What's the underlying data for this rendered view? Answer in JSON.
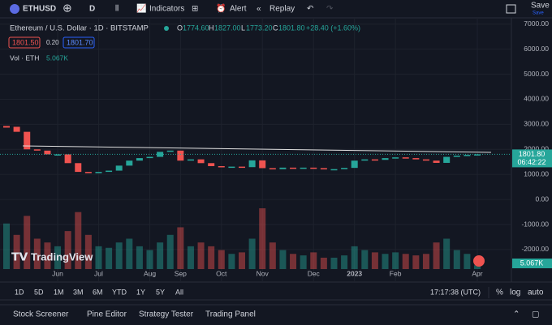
{
  "toolbar": {
    "symbol": "ETHUSD",
    "interval": "D",
    "indicators": "Indicators",
    "alert": "Alert",
    "replay": "Replay",
    "save": "Save",
    "save_sub": "Save"
  },
  "legend": {
    "title": "Ethereum / U.S. Dollar · 1D · BITSTAMP",
    "open_label": "O",
    "open": "1774.60",
    "high_label": "H",
    "high": "1827.00",
    "low_label": "L",
    "low": "1773.20",
    "close_label": "C",
    "close": "1801.80",
    "change": "+28.40 (+1.60%)",
    "bid": "1801.50",
    "spread": "0.20",
    "ask": "1801.70",
    "volume_label": "Vol · ETH",
    "volume": "5.067K"
  },
  "chart_data": {
    "type": "candlestick",
    "up_color": "#26a69a",
    "down_color": "#ef5350",
    "grid": true,
    "categories": [
      null,
      null,
      null,
      null,
      null,
      "Jun",
      null,
      null,
      null,
      "Jul",
      null,
      null,
      null,
      null,
      "Aug",
      null,
      null,
      "Sep",
      null,
      null,
      null,
      "Oct",
      null,
      null,
      null,
      "Nov",
      null,
      null,
      null,
      null,
      "Dec",
      null,
      null,
      null,
      "2023",
      null,
      null,
      null,
      "Feb",
      null,
      null,
      null,
      null,
      null,
      null,
      null,
      "Apr"
    ],
    "values": [
      2900,
      2700,
      2000,
      1950,
      1800,
      1800,
      1450,
      1100,
      1050,
      1100,
      1150,
      1350,
      1550,
      1650,
      1700,
      1900,
      1950,
      1550,
      1600,
      1450,
      1330,
      1300,
      1310,
      1290,
      1560,
      1250,
      1210,
      1270,
      1230,
      1270,
      1250,
      1200,
      1210,
      1260,
      1550,
      1600,
      1580,
      1650,
      1680,
      1650,
      1600,
      1550,
      1460,
      1700,
      1750,
      1780,
      1801.8
    ],
    "volume": [
      60,
      45,
      70,
      40,
      35,
      30,
      50,
      75,
      45,
      30,
      28,
      35,
      40,
      30,
      25,
      35,
      45,
      55,
      30,
      35,
      30,
      25,
      20,
      22,
      40,
      80,
      35,
      25,
      20,
      18,
      22,
      15,
      15,
      18,
      30,
      25,
      22,
      20,
      22,
      20,
      18,
      20,
      35,
      40,
      25,
      20,
      5.067
    ],
    "ylim": [
      -3200,
      7250
    ],
    "yticks": [
      {
        "value": 7000,
        "label": "7000.00"
      },
      {
        "value": 6000,
        "label": "6000.00"
      },
      {
        "value": 5000,
        "label": "5000.00"
      },
      {
        "value": 4000,
        "label": "4000.00"
      },
      {
        "value": 3000,
        "label": "3000.00"
      },
      {
        "value": 2000,
        "label": "2000.00"
      },
      {
        "value": 1000,
        "label": "1000.00"
      },
      {
        "value": 0,
        "label": "0.00"
      },
      {
        "value": -1000,
        "label": "-1000.00"
      },
      {
        "value": -2000,
        "label": "-2000.00"
      }
    ],
    "price_label": "1801.80",
    "countdown": "06:42:22",
    "volume_tag": "5.067K",
    "watermark": "TradingView"
  },
  "time_range": {
    "buttons": [
      "1D",
      "5D",
      "1M",
      "3M",
      "6M",
      "YTD",
      "1Y",
      "5Y",
      "All"
    ],
    "clock": "17:17:38 (UTC)",
    "percent": "%",
    "log": "log",
    "auto": "auto"
  },
  "bottom_tabs": [
    "Stock Screener",
    "Pine Editor",
    "Strategy Tester",
    "Trading Panel"
  ]
}
